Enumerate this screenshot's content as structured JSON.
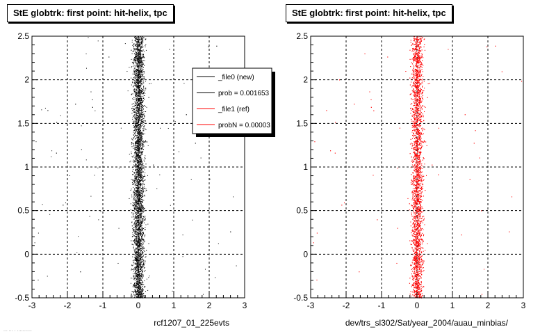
{
  "chart_data": [
    {
      "type": "scatter",
      "title": "StE globtrk: first point: hit-helix, tpc",
      "xlabel": "rcf1207_01_225evts",
      "ylabel": "",
      "xlim": [
        -3,
        3
      ],
      "ylim": [
        -0.5,
        2.5
      ],
      "x_ticks": [
        -3,
        -2,
        -1,
        0,
        1,
        2,
        3
      ],
      "y_ticks": [
        -0.5,
        0,
        0.5,
        1,
        1.5,
        2,
        2.5
      ],
      "x_tick_labels": [
        "-3",
        "-2",
        "-1",
        "0",
        "1",
        "2",
        "3"
      ],
      "y_tick_labels": [
        "-0.5",
        "0",
        "0.5",
        "1",
        "1.5",
        "2",
        "2.5"
      ],
      "grid": true,
      "series": [
        {
          "name": "_file0 (new)",
          "color": "#000000",
          "center_x": 0.0,
          "spread_x": 0.08,
          "y_range": [
            -0.5,
            2.5
          ]
        }
      ],
      "legend": {
        "placement": "top-right",
        "entries": [
          {
            "label": "_file0 (new)",
            "color": "#000000"
          },
          {
            "label": "prob = 0.001653",
            "color": "#000000"
          },
          {
            "label": "_file1 (ref)",
            "color": "#ff0000"
          },
          {
            "label": "probN = 0.00003",
            "color": "#ff0000"
          }
        ]
      }
    },
    {
      "type": "scatter",
      "title": "StE globtrk: first point: hit-helix, tpc",
      "xlabel": "dev/trs_sl302/Sat/year_2004/auau_minbias/",
      "ylabel": "",
      "xlim": [
        -3,
        3
      ],
      "ylim": [
        -0.5,
        2.5
      ],
      "x_ticks": [
        -3,
        -2,
        -1,
        0,
        1,
        2,
        3
      ],
      "y_ticks": [
        -0.5,
        0,
        0.5,
        1,
        1.5,
        2,
        2.5
      ],
      "x_tick_labels": [
        "-3",
        "-2",
        "-1",
        "0",
        "1",
        "2",
        "3"
      ],
      "y_tick_labels": [
        "-0.5",
        "0",
        "0.5",
        "1",
        "1.5",
        "2",
        "2.5"
      ],
      "grid": true,
      "series": [
        {
          "name": "_file1 (ref)",
          "color": "#ff0000",
          "center_x": 0.0,
          "spread_x": 0.08,
          "y_range": [
            -0.5,
            2.5
          ]
        }
      ]
    }
  ],
  "footer": "... ... . ...........",
  "colors": {
    "new": "#000000",
    "ref": "#ff0000",
    "grid": "#000000",
    "background": "#ffffff"
  }
}
